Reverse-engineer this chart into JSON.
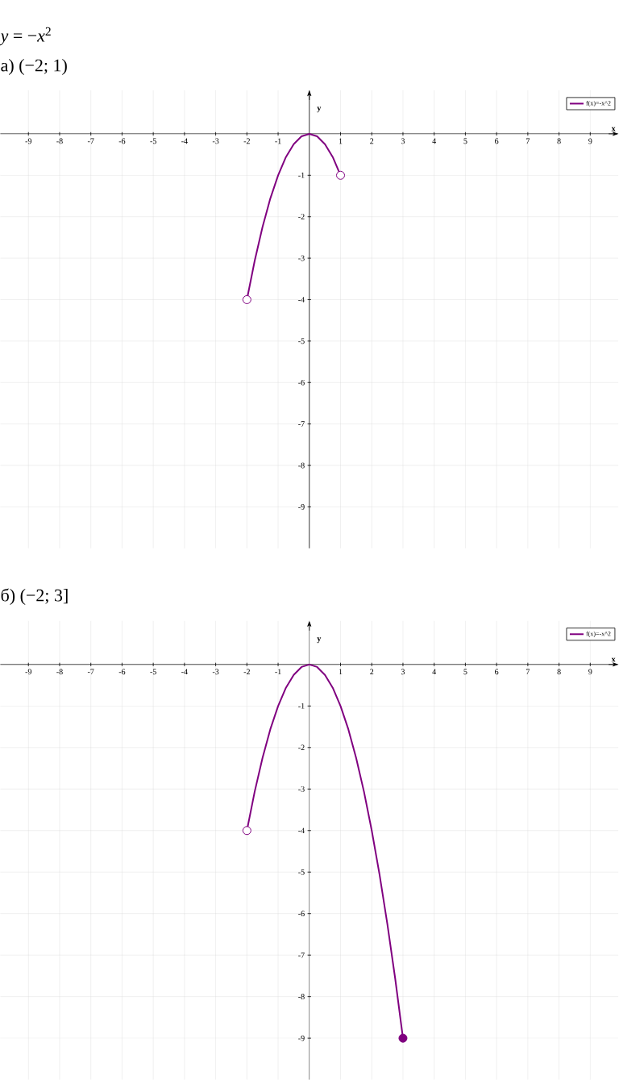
{
  "chart_data": [
    {
      "type": "line",
      "title": "*y* = −*x*$^{2}$",
      "subtitle": "а) (−2; 1)",
      "xlabel": "x",
      "ylabel": "y",
      "xlim": [
        -9.9,
        9.9
      ],
      "ylim": [
        -10,
        1.05
      ],
      "xticks": [
        -9,
        -8,
        -7,
        -6,
        -5,
        -4,
        -3,
        -2,
        -1,
        1,
        2,
        3,
        4,
        5,
        6,
        7,
        8,
        9
      ],
      "yticks": [
        -9,
        -8,
        -7,
        -6,
        -5,
        -4,
        -3,
        -2,
        -1
      ],
      "grid": true,
      "legend": "top right",
      "series": [
        {
          "name": "f(x)=-x^2",
          "color": "#800080",
          "x": [
            -2,
            -1.75,
            -1.5,
            -1.25,
            -1,
            -0.75,
            -0.5,
            -0.25,
            0,
            0.25,
            0.5,
            0.75,
            1
          ],
          "values": [
            -4,
            -3.06,
            -2.25,
            -1.56,
            -1,
            -0.56,
            -0.25,
            -0.06,
            0,
            -0.06,
            -0.25,
            -0.56,
            -1
          ]
        },
        {
          "type": "scatter",
          "marker": "circle",
          "x": [
            -2,
            1
          ],
          "values": [
            -4,
            -1
          ],
          "colors": [
            "#ffffff",
            "#ffffff"
          ]
        }
      ]
    },
    {
      "type": "line",
      "title": "б) (−2; 3]",
      "xlabel": "x",
      "ylabel": "y",
      "xlim": [
        -9.9,
        9.9
      ],
      "ylim": [
        -10,
        1.05
      ],
      "xticks": [
        -9,
        -8,
        -7,
        -6,
        -5,
        -4,
        -3,
        -2,
        -1,
        1,
        2,
        3,
        4,
        5,
        6,
        7,
        8,
        9
      ],
      "yticks": [
        -9,
        -8,
        -7,
        -6,
        -5,
        -4,
        -3,
        -2,
        -1
      ],
      "grid": true,
      "legend": "top right",
      "series": [
        {
          "name": "f(x)=-x^2",
          "color": "#800080",
          "x": [
            -2,
            -1.75,
            -1.5,
            -1.25,
            -1,
            -0.75,
            -0.5,
            -0.25,
            0,
            0.25,
            0.5,
            0.75,
            1,
            1.25,
            1.5,
            1.75,
            2,
            2.25,
            2.5,
            2.75,
            3
          ],
          "values": [
            -4,
            -3.06,
            -2.25,
            -1.56,
            -1,
            -0.56,
            -0.25,
            -0.06,
            0,
            -0.06,
            -0.25,
            -0.56,
            -1,
            -1.56,
            -2.25,
            -3.06,
            -4,
            -5.06,
            -6.25,
            -7.56,
            -9
          ]
        },
        {
          "type": "scatter",
          "marker": "circle",
          "x": [
            -2,
            3
          ],
          "values": [
            -4,
            -9
          ],
          "colors": [
            "#ffffff",
            "#800080"
          ]
        }
      ]
    }
  ]
}
